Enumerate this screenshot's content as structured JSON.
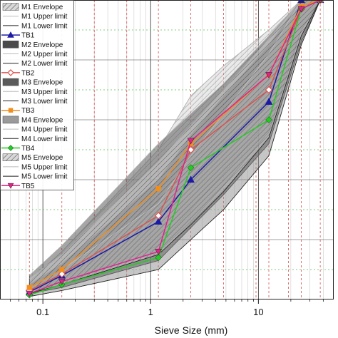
{
  "chart_data": {
    "type": "line",
    "title": "",
    "xlabel": "Sieve Size (mm)",
    "ylabel": "",
    "xscale": "log",
    "xlim": [
      0.04,
      50
    ],
    "ylim": [
      0,
      100
    ],
    "x_ticks": [
      {
        "value": 0.1,
        "label": "0.1"
      },
      {
        "value": 1,
        "label": "1"
      },
      {
        "value": 10,
        "label": "10"
      }
    ],
    "sieve_gridlines": [
      0.075,
      0.15,
      0.3,
      0.6,
      1.18,
      2.36,
      4.75,
      9.5,
      12.5,
      19,
      25,
      37.5
    ],
    "grid": true,
    "legend_position": "top-left",
    "legend": [
      {
        "label": "M1 Envelope",
        "kind": "hatched"
      },
      {
        "label": "M1 Upper limit",
        "kind": "line",
        "color": "#bbbbbb"
      },
      {
        "label": "M1 Lower limit",
        "kind": "line",
        "color": "#222222"
      },
      {
        "label": "TB1",
        "kind": "marker",
        "color": "#1a1aa6",
        "marker": "triangle-up"
      },
      {
        "label": "M2 Envelope",
        "kind": "fill",
        "color": "#4a4a4a"
      },
      {
        "label": "M2 Upper limit",
        "kind": "line",
        "color": "#bbbbbb"
      },
      {
        "label": "M2 Lower limit",
        "kind": "line",
        "color": "#222222"
      },
      {
        "label": "TB2",
        "kind": "marker",
        "color": "#d9534f",
        "marker": "diamond-open"
      },
      {
        "label": "M3 Envelope",
        "kind": "fill",
        "color": "#5a5a5a"
      },
      {
        "label": "M3 Upper limit",
        "kind": "line",
        "color": "#bbbbbb"
      },
      {
        "label": "M3 Lower limit",
        "kind": "line",
        "color": "#222222"
      },
      {
        "label": "TB3",
        "kind": "marker",
        "color": "#f28e1c",
        "marker": "square"
      },
      {
        "label": "M4 Envelope",
        "kind": "fill",
        "color": "#9a9a9a"
      },
      {
        "label": "M4 Upper limit",
        "kind": "line",
        "color": "#bbbbbb"
      },
      {
        "label": "M4 Lower limit",
        "kind": "line",
        "color": "#222222"
      },
      {
        "label": "TB4",
        "kind": "marker",
        "color": "#22cc22",
        "marker": "diamond"
      },
      {
        "label": "M5 Envelope",
        "kind": "hatched"
      },
      {
        "label": "M5 Upper limit",
        "kind": "line",
        "color": "#bbbbbb"
      },
      {
        "label": "M5 Lower limit",
        "kind": "line",
        "color": "#222222"
      },
      {
        "label": "TB5",
        "kind": "marker",
        "color": "#e0228c",
        "marker": "triangle-down"
      }
    ],
    "envelopes": [
      {
        "upper": [
          [
            0.075,
            6
          ],
          [
            0.15,
            16
          ],
          [
            1.18,
            50
          ],
          [
            2.36,
            68
          ],
          [
            4.75,
            78
          ],
          [
            12.5,
            90
          ],
          [
            25,
            100
          ],
          [
            37.5,
            100
          ]
        ],
        "lower": [
          [
            0.075,
            2
          ],
          [
            0.15,
            5
          ],
          [
            1.18,
            18
          ],
          [
            2.36,
            30
          ],
          [
            4.75,
            42
          ],
          [
            12.5,
            60
          ],
          [
            25,
            90
          ],
          [
            37.5,
            100
          ]
        ]
      },
      {
        "upper": [
          [
            0.075,
            5
          ],
          [
            0.15,
            12
          ],
          [
            1.18,
            40
          ],
          [
            2.36,
            55
          ],
          [
            4.75,
            68
          ],
          [
            12.5,
            85
          ],
          [
            25,
            100
          ],
          [
            37.5,
            100
          ]
        ],
        "lower": [
          [
            0.075,
            2
          ],
          [
            0.15,
            4
          ],
          [
            1.18,
            13
          ],
          [
            2.36,
            24
          ],
          [
            4.75,
            35
          ],
          [
            12.5,
            52
          ],
          [
            25,
            86
          ],
          [
            37.5,
            100
          ]
        ]
      },
      {
        "upper": [
          [
            0.075,
            8
          ],
          [
            0.15,
            18
          ],
          [
            1.18,
            52
          ],
          [
            2.36,
            62
          ],
          [
            4.75,
            72
          ],
          [
            12.5,
            88
          ],
          [
            25,
            100
          ],
          [
            37.5,
            100
          ]
        ],
        "lower": [
          [
            0.075,
            3
          ],
          [
            0.15,
            6
          ],
          [
            1.18,
            16
          ],
          [
            2.36,
            26
          ],
          [
            4.75,
            38
          ],
          [
            12.5,
            56
          ],
          [
            25,
            90
          ],
          [
            37.5,
            100
          ]
        ]
      },
      {
        "upper": [
          [
            0.075,
            4
          ],
          [
            0.15,
            10
          ],
          [
            1.18,
            32
          ],
          [
            2.36,
            48
          ],
          [
            4.75,
            62
          ],
          [
            12.5,
            82
          ],
          [
            25,
            100
          ],
          [
            37.5,
            100
          ]
        ],
        "lower": [
          [
            0.075,
            1
          ],
          [
            0.15,
            3
          ],
          [
            1.18,
            10
          ],
          [
            2.36,
            20
          ],
          [
            4.75,
            30
          ],
          [
            12.5,
            48
          ],
          [
            25,
            85
          ],
          [
            37.5,
            100
          ]
        ]
      },
      {
        "upper": [
          [
            0.075,
            7
          ],
          [
            0.15,
            15
          ],
          [
            1.18,
            46
          ],
          [
            2.36,
            58
          ],
          [
            4.75,
            70
          ],
          [
            12.5,
            87
          ],
          [
            25,
            100
          ],
          [
            37.5,
            100
          ]
        ],
        "lower": [
          [
            0.075,
            2
          ],
          [
            0.15,
            5
          ],
          [
            1.18,
            15
          ],
          [
            2.36,
            25
          ],
          [
            4.75,
            36
          ],
          [
            12.5,
            54
          ],
          [
            25,
            88
          ],
          [
            37.5,
            100
          ]
        ]
      }
    ],
    "series": [
      {
        "name": "TB1",
        "color": "#1a1aa6",
        "marker": "triangle-up",
        "points": [
          [
            0.075,
            2.5
          ],
          [
            0.15,
            8
          ],
          [
            1.18,
            26
          ],
          [
            2.36,
            40
          ],
          [
            12.5,
            66
          ],
          [
            25,
            100
          ],
          [
            37.5,
            100
          ]
        ]
      },
      {
        "name": "TB2",
        "color": "#d9534f",
        "marker": "diamond-open",
        "points": [
          [
            0.075,
            3
          ],
          [
            0.15,
            8.5
          ],
          [
            1.18,
            28
          ],
          [
            2.36,
            50
          ],
          [
            12.5,
            70
          ],
          [
            25,
            97
          ],
          [
            37.5,
            100
          ]
        ]
      },
      {
        "name": "TB3",
        "color": "#f28e1c",
        "marker": "square",
        "points": [
          [
            0.075,
            4
          ],
          [
            0.15,
            10
          ],
          [
            1.18,
            37
          ],
          [
            2.36,
            52
          ],
          [
            12.5,
            75
          ],
          [
            25,
            98
          ],
          [
            37.5,
            100
          ]
        ]
      },
      {
        "name": "TB4",
        "color": "#22cc22",
        "marker": "diamond",
        "points": [
          [
            0.075,
            1.5
          ],
          [
            0.15,
            5
          ],
          [
            1.18,
            14
          ],
          [
            2.36,
            44
          ],
          [
            12.5,
            60
          ],
          [
            25,
            97
          ],
          [
            37.5,
            100
          ]
        ]
      },
      {
        "name": "TB5",
        "color": "#e0228c",
        "marker": "triangle-down",
        "points": [
          [
            0.075,
            2
          ],
          [
            0.15,
            6
          ],
          [
            1.18,
            16
          ],
          [
            2.36,
            53
          ],
          [
            12.5,
            75
          ],
          [
            25,
            97
          ],
          [
            37.5,
            100
          ]
        ]
      }
    ]
  }
}
